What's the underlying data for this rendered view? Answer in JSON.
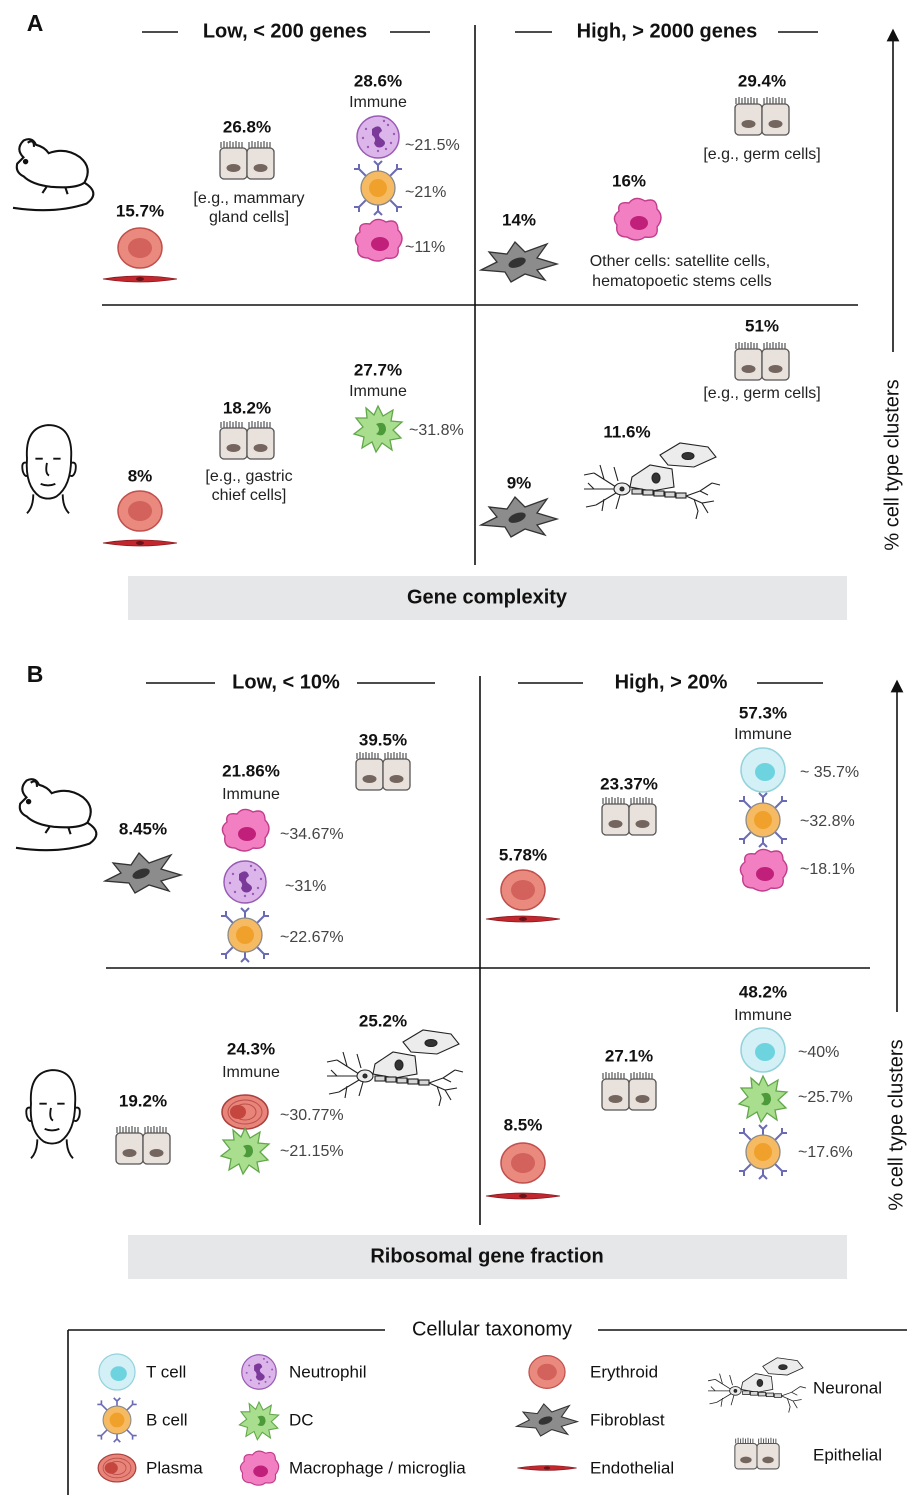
{
  "panel_a": {
    "letter": "A",
    "header_low": "Low, < 200 genes",
    "header_high": "High, > 2000 genes",
    "footer": "Gene complexity",
    "axis_label": "% cell type clusters",
    "mouse_low": {
      "erythroid": "15.7%",
      "epithelial": "26.8%",
      "epithelial_note": [
        "[e.g., mammary",
        "gland cells]"
      ],
      "immune": "28.6%",
      "immune_label": "Immune",
      "neutrophil": "~21.5%",
      "b_cell": "~21%",
      "macrophage": "~11%"
    },
    "mouse_high": {
      "fibroblast": "14%",
      "macrophage": "16%",
      "other_note": [
        "Other cells: satellite cells,",
        "hematopoetic stems cells"
      ],
      "epithelial": "29.4%",
      "epithelial_note": "[e.g., germ cells]"
    },
    "human_low": {
      "erythroid": "8%",
      "epithelial": "18.2%",
      "epithelial_note": [
        "[e.g., gastric",
        "chief cells]"
      ],
      "immune": "27.7%",
      "immune_label": "Immune",
      "dc": "~31.8%"
    },
    "human_high": {
      "fibroblast": "9%",
      "neuronal": "11.6%",
      "epithelial": "51%",
      "epithelial_note": "[e.g., germ cells]"
    }
  },
  "panel_b": {
    "letter": "B",
    "header_low": "Low, < 10%",
    "header_high": "High, > 20%",
    "footer": "Ribosomal gene fraction",
    "axis_label": "% cell type clusters",
    "mouse_low": {
      "fibroblast": "8.45%",
      "immune": "21.86%",
      "immune_label": "Immune",
      "macrophage": "~34.67%",
      "neutrophil": "~31%",
      "b_cell": "~22.67%",
      "epithelial": "39.5%"
    },
    "mouse_high": {
      "erythroid": "5.78%",
      "epithelial": "23.37%",
      "immune": "57.3%",
      "immune_label": "Immune",
      "t_cell": "~ 35.7%",
      "b_cell": "~32.8%",
      "macrophage": "~18.1%"
    },
    "human_low": {
      "epithelial": "19.2%",
      "immune": "24.3%",
      "immune_label": "Immune",
      "plasma": "~30.77%",
      "dc": "~21.15%",
      "neuronal": "25.2%"
    },
    "human_high": {
      "erythroid": "8.5%",
      "epithelial": "27.1%",
      "immune": "48.2%",
      "immune_label": "Immune",
      "t_cell": "~40%",
      "dc": "~25.7%",
      "b_cell": "~17.6%"
    }
  },
  "legend": {
    "title": "Cellular taxonomy",
    "items": [
      "T cell",
      "B cell",
      "Plasma",
      "Neutrophil",
      "DC",
      "Macrophage / microglia",
      "Erythroid",
      "Fibroblast",
      "Endothelial",
      "Neuronal",
      "Epithelial"
    ]
  }
}
